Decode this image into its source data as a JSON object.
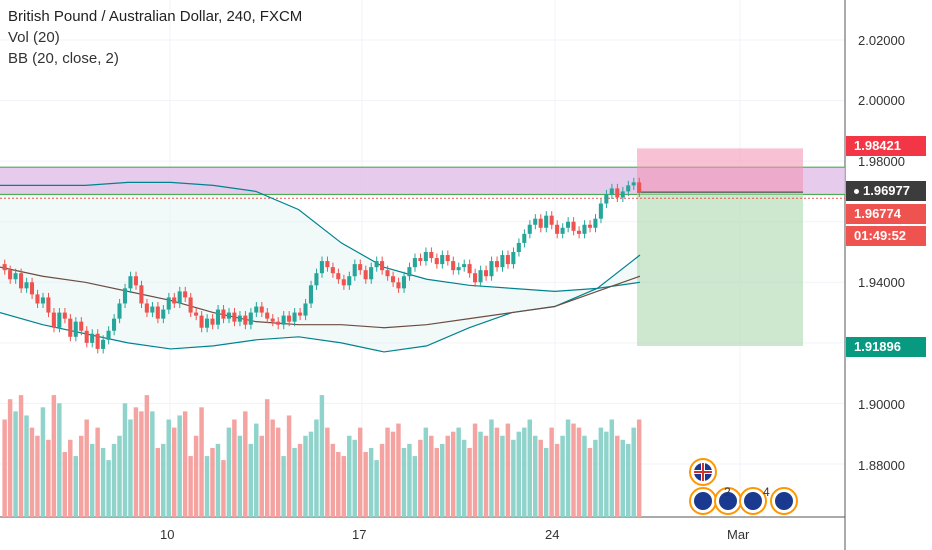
{
  "legend": {
    "title": "British Pound / Australian Dollar, 240, FXCM",
    "vol": "Vol (20)",
    "bb": "BB (20, close, 2)"
  },
  "price_axis": [
    "2.02000",
    "2.00000",
    "1.98000",
    "1.94000",
    "1.90000",
    "1.88000"
  ],
  "time_axis": [
    "10",
    "17",
    "24",
    "Mar"
  ],
  "price_tags": {
    "stop": "1.98421",
    "current": "1.96977",
    "last": "1.96774",
    "countdown": "01:49:52",
    "target": "1.91896"
  },
  "colors": {
    "up": "#26a69a",
    "down": "#ef5350",
    "zone_fill": "#e1bee7",
    "zone_line": "#4caf50",
    "band": "#00838f",
    "basis": "#6d4c41"
  },
  "events": [
    {
      "icon": "flag-uk-icon",
      "label": ""
    },
    {
      "icon": "flag-au-icon",
      "label": ""
    },
    {
      "icon": "flag-au-icon",
      "label": "2"
    },
    {
      "icon": "flag-au-icon",
      "label": "4"
    },
    {
      "icon": "flag-au-icon",
      "label": ""
    }
  ],
  "chart_data": {
    "type": "candlestick",
    "ylim": [
      1.864,
      2.036
    ],
    "dates": [
      "10",
      "17",
      "24",
      "Mar"
    ],
    "closes": [
      1.944,
      1.941,
      1.943,
      1.938,
      1.94,
      1.936,
      1.933,
      1.935,
      1.93,
      1.925,
      1.93,
      1.928,
      1.922,
      1.927,
      1.924,
      1.92,
      1.923,
      1.918,
      1.921,
      1.924,
      1.928,
      1.933,
      1.938,
      1.942,
      1.939,
      1.933,
      1.93,
      1.932,
      1.928,
      1.931,
      1.935,
      1.933,
      1.937,
      1.935,
      1.93,
      1.929,
      1.925,
      1.928,
      1.926,
      1.931,
      1.928,
      1.93,
      1.927,
      1.929,
      1.926,
      1.93,
      1.932,
      1.93,
      1.928,
      1.927,
      1.926,
      1.929,
      1.927,
      1.93,
      1.929,
      1.933,
      1.939,
      1.943,
      1.947,
      1.945,
      1.943,
      1.941,
      1.939,
      1.942,
      1.946,
      1.944,
      1.941,
      1.945,
      1.947,
      1.944,
      1.942,
      1.94,
      1.938,
      1.942,
      1.945,
      1.948,
      1.947,
      1.95,
      1.948,
      1.946,
      1.949,
      1.947,
      1.944,
      1.945,
      1.946,
      1.943,
      1.94,
      1.944,
      1.942,
      1.947,
      1.945,
      1.949,
      1.946,
      1.95,
      1.953,
      1.956,
      1.959,
      1.961,
      1.958,
      1.962,
      1.959,
      1.956,
      1.958,
      1.96,
      1.957,
      1.956,
      1.959,
      1.958,
      1.961,
      1.966,
      1.969,
      1.971,
      1.968,
      1.97,
      1.972,
      1.973,
      1.9697
    ],
    "volumes": [
      120,
      145,
      130,
      150,
      125,
      110,
      100,
      135,
      95,
      150,
      140,
      80,
      95,
      75,
      100,
      120,
      90,
      110,
      85,
      70,
      90,
      100,
      140,
      120,
      135,
      130,
      150,
      130,
      85,
      90,
      120,
      110,
      125,
      130,
      75,
      100,
      135,
      75,
      85,
      90,
      70,
      110,
      120,
      100,
      130,
      90,
      115,
      100,
      145,
      120,
      110,
      75,
      125,
      85,
      90,
      100,
      105,
      120,
      150,
      110,
      90,
      80,
      75,
      100,
      95,
      110,
      80,
      85,
      70,
      90,
      110,
      105,
      115,
      85,
      90,
      75,
      95,
      110,
      100,
      85,
      90,
      100,
      105,
      110,
      95,
      85,
      115,
      105,
      100,
      120,
      110,
      100,
      115,
      95,
      105,
      110,
      120,
      100,
      95,
      85,
      110,
      90,
      100,
      120,
      115,
      110,
      100,
      85,
      95,
      110,
      105,
      120,
      100,
      95,
      90,
      110,
      120,
      100
    ],
    "bb_upper": [
      1.972,
      1.972,
      1.972,
      1.973,
      1.973,
      1.972,
      1.97,
      1.964,
      1.953,
      1.945,
      1.941,
      1.939,
      1.938,
      1.937,
      1.938,
      1.94
    ],
    "bb_basis": [
      1.945,
      1.942,
      1.94,
      1.937,
      1.934,
      1.93,
      1.927,
      1.926,
      1.926,
      1.925,
      1.926,
      1.928,
      1.93,
      1.932,
      1.937,
      1.942
    ],
    "bb_lower": [
      1.93,
      1.926,
      1.923,
      1.92,
      1.918,
      1.919,
      1.921,
      1.922,
      1.92,
      1.917,
      1.919,
      1.925,
      1.93,
      1.932,
      1.938,
      1.949
    ],
    "zone": [
      1.969,
      1.978
    ],
    "stop": 1.98421,
    "entry": 1.96977,
    "target": 1.91896,
    "last": 1.96774
  }
}
